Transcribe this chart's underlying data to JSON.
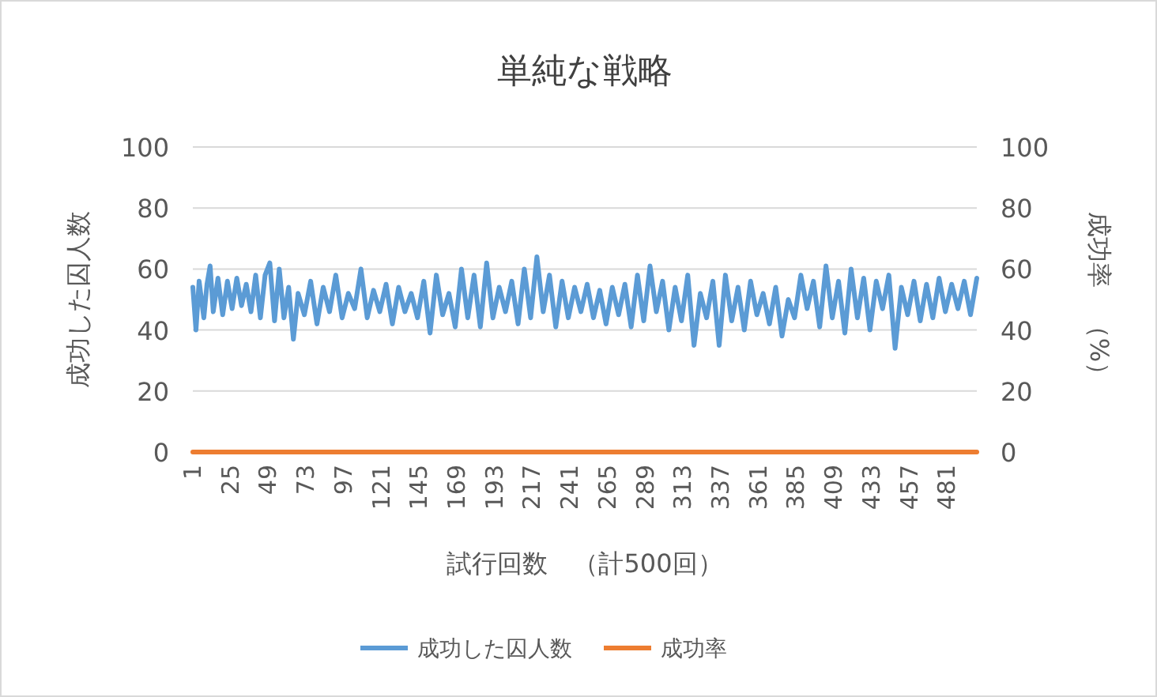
{
  "chart_data": {
    "type": "line",
    "title": "単純な戦略",
    "xlabel": "試行回数　（計500回）",
    "ylabel": "成功した囚人数",
    "y2label": "成功率　（%）",
    "xlim": [
      1,
      500
    ],
    "xticks": [
      1,
      25,
      49,
      73,
      97,
      121,
      145,
      169,
      193,
      217,
      241,
      265,
      289,
      313,
      337,
      361,
      385,
      409,
      433,
      457,
      481
    ],
    "ylim": [
      0,
      100
    ],
    "yticks": [
      0,
      20,
      40,
      60,
      80,
      100
    ],
    "y2lim": [
      0,
      100
    ],
    "y2ticks": [
      0,
      20,
      40,
      60,
      80,
      100
    ],
    "grid": "y",
    "legend": "bottom",
    "marker": "none",
    "line_style": "solid",
    "series": [
      {
        "name": "成功した囚人数",
        "color": "#5b9bd5",
        "x": [
          1,
          3,
          5,
          8,
          10,
          12,
          14,
          17,
          20,
          23,
          26,
          29,
          32,
          35,
          38,
          41,
          44,
          47,
          50,
          53,
          56,
          59,
          62,
          65,
          68,
          72,
          76,
          80,
          84,
          88,
          92,
          96,
          100,
          104,
          108,
          112,
          116,
          120,
          124,
          128,
          132,
          136,
          140,
          144,
          148,
          152,
          156,
          160,
          164,
          168,
          172,
          176,
          180,
          184,
          188,
          192,
          196,
          200,
          204,
          208,
          212,
          216,
          220,
          224,
          228,
          232,
          236,
          240,
          244,
          248,
          252,
          256,
          260,
          264,
          268,
          272,
          276,
          280,
          284,
          288,
          292,
          296,
          300,
          304,
          308,
          312,
          316,
          320,
          324,
          328,
          332,
          336,
          340,
          344,
          348,
          352,
          356,
          360,
          364,
          368,
          372,
          376,
          380,
          384,
          388,
          392,
          396,
          400,
          404,
          408,
          412,
          416,
          420,
          424,
          428,
          432,
          436,
          440,
          444,
          448,
          452,
          456,
          460,
          464,
          468,
          472,
          476,
          480,
          484,
          488,
          492,
          496,
          500
        ],
        "values": [
          54,
          40,
          56,
          44,
          55,
          61,
          46,
          57,
          45,
          56,
          47,
          57,
          48,
          55,
          46,
          58,
          44,
          58,
          62,
          43,
          60,
          44,
          54,
          37,
          52,
          45,
          56,
          42,
          54,
          46,
          58,
          44,
          52,
          47,
          60,
          44,
          53,
          46,
          55,
          42,
          54,
          46,
          52,
          44,
          56,
          39,
          58,
          45,
          52,
          41,
          60,
          44,
          58,
          41,
          62,
          44,
          54,
          46,
          56,
          42,
          60,
          44,
          64,
          46,
          58,
          41,
          56,
          44,
          54,
          46,
          55,
          44,
          53,
          42,
          54,
          45,
          55,
          41,
          58,
          43,
          61,
          46,
          56,
          40,
          54,
          43,
          58,
          35,
          52,
          44,
          56,
          35,
          58,
          43,
          54,
          40,
          56,
          45,
          52,
          42,
          54,
          38,
          50,
          44,
          58,
          47,
          56,
          41,
          61,
          44,
          56,
          39,
          60,
          44,
          57,
          40,
          56,
          47,
          58,
          34,
          54,
          45,
          56,
          43,
          55,
          44,
          57,
          46,
          55,
          47,
          56,
          45,
          57
        ]
      },
      {
        "name": "成功率",
        "color": "#ed7d31",
        "axis": "y2",
        "x": [
          1,
          500
        ],
        "values": [
          0,
          0
        ]
      }
    ]
  }
}
